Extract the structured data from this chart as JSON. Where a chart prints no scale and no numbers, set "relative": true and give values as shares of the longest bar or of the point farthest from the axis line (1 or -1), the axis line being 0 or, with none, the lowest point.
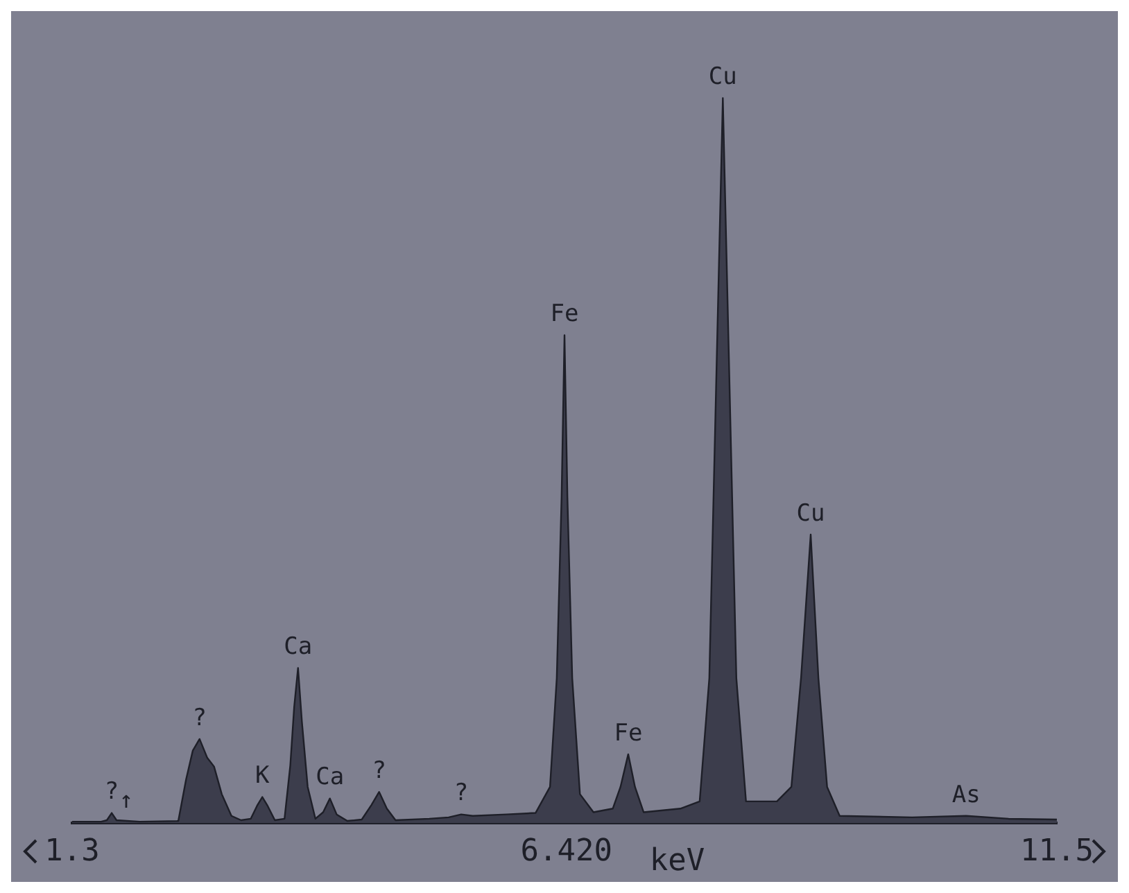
{
  "chart_data": {
    "type": "area",
    "relative": true,
    "xlabel": "keV",
    "color": "#3c3d4c",
    "x": [
      1.3,
      1.6,
      1.66,
      1.71,
      1.76,
      2.0,
      2.4,
      2.48,
      2.55,
      2.62,
      2.7,
      2.77,
      2.85,
      2.95,
      3.05,
      3.15,
      3.22,
      3.27,
      3.32,
      3.4,
      3.5,
      3.56,
      3.6,
      3.64,
      3.68,
      3.74,
      3.82,
      3.9,
      3.97,
      4.04,
      4.15,
      4.3,
      4.4,
      4.48,
      4.56,
      4.65,
      5.0,
      5.2,
      5.33,
      5.45,
      5.8,
      6.1,
      6.25,
      6.32,
      6.37,
      6.4,
      6.43,
      6.48,
      6.56,
      6.7,
      6.9,
      6.98,
      7.06,
      7.13,
      7.22,
      7.6,
      7.8,
      7.9,
      7.97,
      8.04,
      8.11,
      8.18,
      8.28,
      8.6,
      8.75,
      8.85,
      8.95,
      9.03,
      9.12,
      9.25,
      10.0,
      10.56,
      11.0,
      11.5
    ],
    "values": [
      0.002,
      0.002,
      0.004,
      0.014,
      0.004,
      0.002,
      0.003,
      0.06,
      0.1,
      0.116,
      0.09,
      0.078,
      0.04,
      0.01,
      0.004,
      0.006,
      0.025,
      0.036,
      0.025,
      0.004,
      0.006,
      0.08,
      0.16,
      0.214,
      0.14,
      0.05,
      0.006,
      0.015,
      0.034,
      0.012,
      0.003,
      0.005,
      0.025,
      0.043,
      0.02,
      0.004,
      0.006,
      0.008,
      0.012,
      0.01,
      0.012,
      0.014,
      0.05,
      0.2,
      0.45,
      0.673,
      0.45,
      0.2,
      0.04,
      0.015,
      0.02,
      0.05,
      0.095,
      0.05,
      0.015,
      0.02,
      0.03,
      0.2,
      0.6,
      1,
      0.6,
      0.2,
      0.03,
      0.03,
      0.05,
      0.2,
      0.398,
      0.2,
      0.05,
      0.01,
      0.008,
      0.01,
      0.006,
      0.005
    ],
    "xlim": [
      1.3,
      11.5
    ],
    "xticks": [
      1.3,
      {
        "value": 6.42,
        "label": "6.420"
      },
      11.5
    ],
    "annotations": [
      {
        "text": "?",
        "x": 1.71,
        "y": 0.014
      },
      {
        "text": "↑",
        "x": 1.86,
        "y": 0.002
      },
      {
        "text": "?",
        "x": 2.62,
        "y": 0.116
      },
      {
        "text": "K",
        "x": 3.27,
        "y": 0.036
      },
      {
        "text": "Ca",
        "x": 3.64,
        "y": 0.214
      },
      {
        "text": "Ca",
        "x": 3.97,
        "y": 0.034
      },
      {
        "text": "?",
        "x": 4.48,
        "y": 0.043
      },
      {
        "text": "?",
        "x": 5.33,
        "y": 0.012
      },
      {
        "text": "Fe",
        "x": 6.4,
        "y": 0.673
      },
      {
        "text": "Fe",
        "x": 7.06,
        "y": 0.095
      },
      {
        "text": "Cu",
        "x": 8.04,
        "y": 1
      },
      {
        "text": "Cu",
        "x": 8.95,
        "y": 0.398
      },
      {
        "text": "As",
        "x": 10.56,
        "y": 0.01
      }
    ]
  }
}
